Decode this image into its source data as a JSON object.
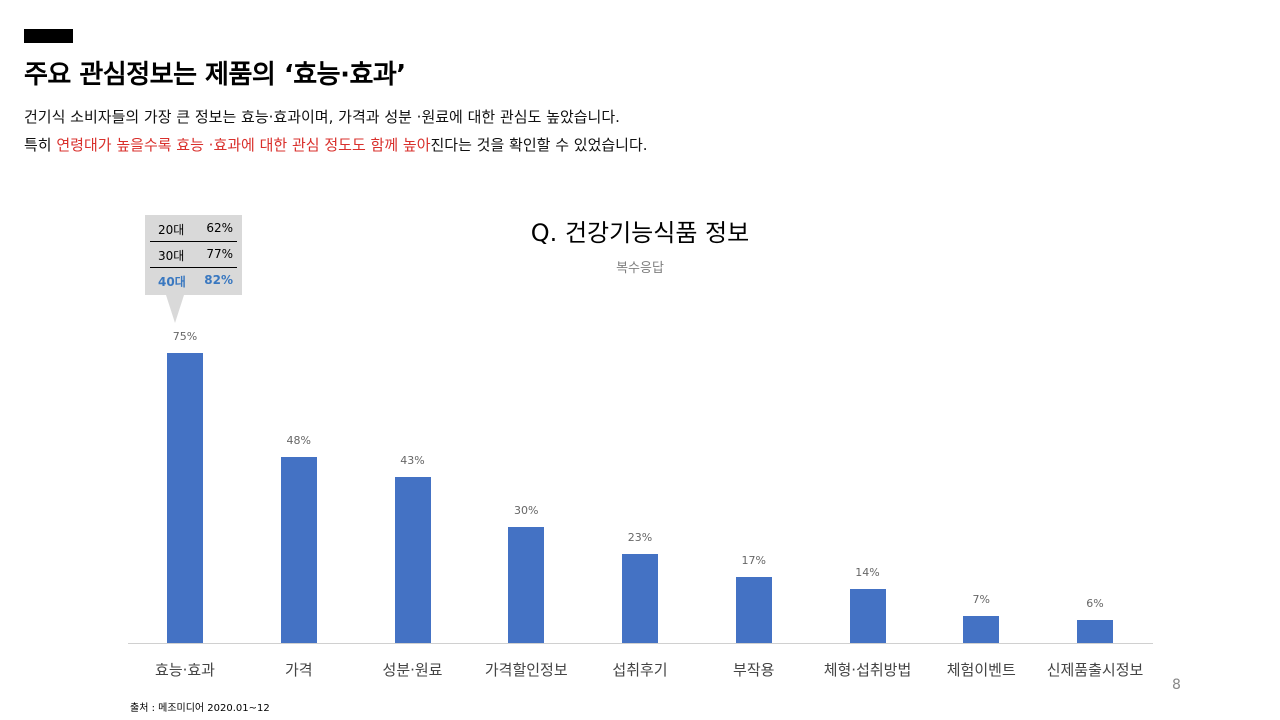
{
  "header": {
    "title": "주요 관심정보는 제품의 ‘효능·효과’",
    "line1": "건기식 소비자들의 가장 큰 정보는 효능·효과이며, 가격과 성분 ·원료에 대한 관심도 높았습니다.",
    "line2_prefix": "특히 ",
    "line2_highlight": "연령대가 높을수록 효능 ·효과에 대한 관심 정도도 함께 높아",
    "line2_suffix": "진다는 것을 확인할 수 있었습니다.",
    "highlight_color": "#d9302c"
  },
  "chart_data": {
    "type": "bar",
    "title": "Q. 건강기능식품 정보",
    "subtitle": "복수응답",
    "categories": [
      "효능·효과",
      "가격",
      "성분·원료",
      "가격할인정보",
      "섭취후기",
      "부작용",
      "체형·섭취방법",
      "체험이벤트",
      "신제품출시정보"
    ],
    "values": [
      75,
      48,
      43,
      30,
      23,
      17,
      14,
      7,
      6
    ],
    "value_labels": [
      "75%",
      "48%",
      "43%",
      "30%",
      "23%",
      "17%",
      "14%",
      "7%",
      "6%"
    ],
    "unit": "%",
    "ylim": [
      0,
      100
    ],
    "grid": false,
    "bar_color": "#4472c4",
    "callout": {
      "target_category": "효능·효과",
      "rows": [
        {
          "age": "20대",
          "value": "62%"
        },
        {
          "age": "30대",
          "value": "77%"
        },
        {
          "age": "40대",
          "value": "82%"
        }
      ],
      "highlight_color": "#3a78c0"
    }
  },
  "footer": {
    "source": "출처 : 메조미디어 2020.01~12",
    "page_number": "8"
  }
}
